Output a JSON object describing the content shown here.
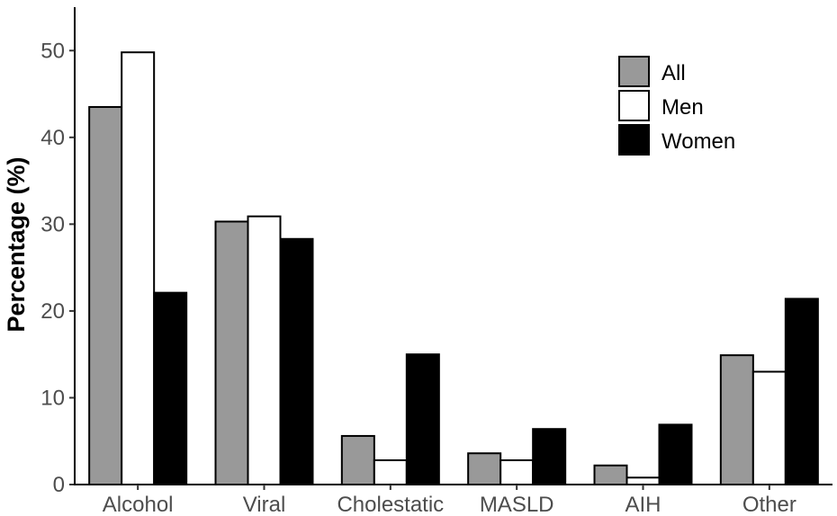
{
  "chart_data": {
    "type": "bar",
    "categories": [
      "Alcohol",
      "Viral",
      "Cholestatic",
      "MASLD",
      "AIH",
      "Other"
    ],
    "series": [
      {
        "name": "All",
        "color": "#999999",
        "values": [
          43.5,
          30.3,
          5.6,
          3.6,
          2.2,
          14.9
        ]
      },
      {
        "name": "Men",
        "color": "#ffffff",
        "values": [
          49.8,
          30.9,
          2.8,
          2.8,
          0.8,
          13.0
        ]
      },
      {
        "name": "Women",
        "color": "#000000",
        "values": [
          22.1,
          28.3,
          15.0,
          6.4,
          6.9,
          21.4
        ]
      }
    ],
    "ylabel": "Percentage (%)",
    "ylim": [
      0,
      55
    ],
    "yticks": [
      0,
      10,
      20,
      30,
      40,
      50
    ],
    "legend_position": "top-right",
    "grid": false
  }
}
